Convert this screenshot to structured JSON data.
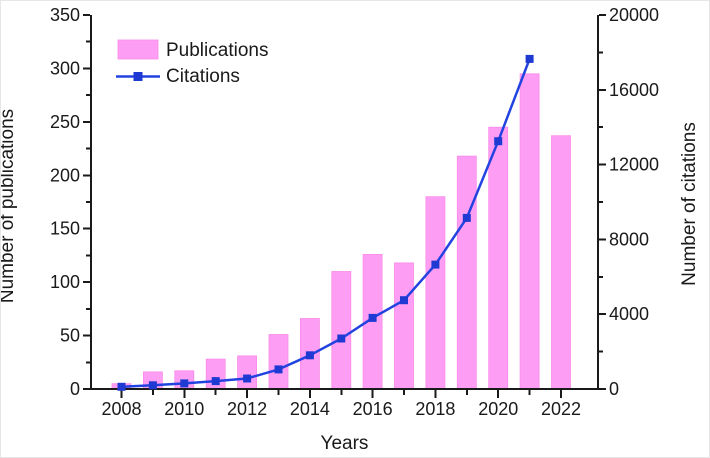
{
  "chart_data": {
    "type": "combo",
    "categories": [
      "2008",
      "2009",
      "2010",
      "2011",
      "2012",
      "2013",
      "2014",
      "2015",
      "2016",
      "2017",
      "2018",
      "2019",
      "2020",
      "2021",
      "2022"
    ],
    "series": [
      {
        "name": "Publications",
        "type": "bar",
        "axis": "left",
        "values": [
          5,
          16,
          17,
          28,
          31,
          51,
          66,
          110,
          126,
          118,
          180,
          218,
          245,
          295,
          237
        ]
      },
      {
        "name": "Citations",
        "type": "line",
        "axis": "right",
        "values": [
          120,
          200,
          300,
          420,
          560,
          1050,
          1800,
          2700,
          3800,
          4750,
          6650,
          9150,
          13250,
          17650,
          null
        ]
      }
    ],
    "title": "",
    "xlabel": "Years",
    "ylabel_left": "Number of publications",
    "ylabel_right": "Number of citations",
    "ylim_left": [
      0,
      350
    ],
    "ylim_right": [
      0,
      20000
    ],
    "yticks_left": {
      "major_step": 50,
      "minor_step": 25
    },
    "yticks_right": {
      "major_step": 4000,
      "minor_step": 2000
    },
    "xticks": {
      "major_label_every": 2,
      "labeled_years": [
        "2008",
        "2010",
        "2012",
        "2014",
        "2016",
        "2018",
        "2020",
        "2022"
      ]
    },
    "legend": {
      "position": "top-left",
      "entries": [
        {
          "label": "Publications",
          "swatch": "bar"
        },
        {
          "label": "Citations",
          "swatch": "line-marker"
        }
      ]
    },
    "grid": false
  },
  "colors": {
    "bar_fill": "#FD9EF4",
    "bar_edge": "#F98AE8",
    "line": "#2243E0",
    "marker": "#1E3AD2",
    "axis": "#1a1a1a",
    "text": "#1a1a1a",
    "background": "#ffffff"
  }
}
